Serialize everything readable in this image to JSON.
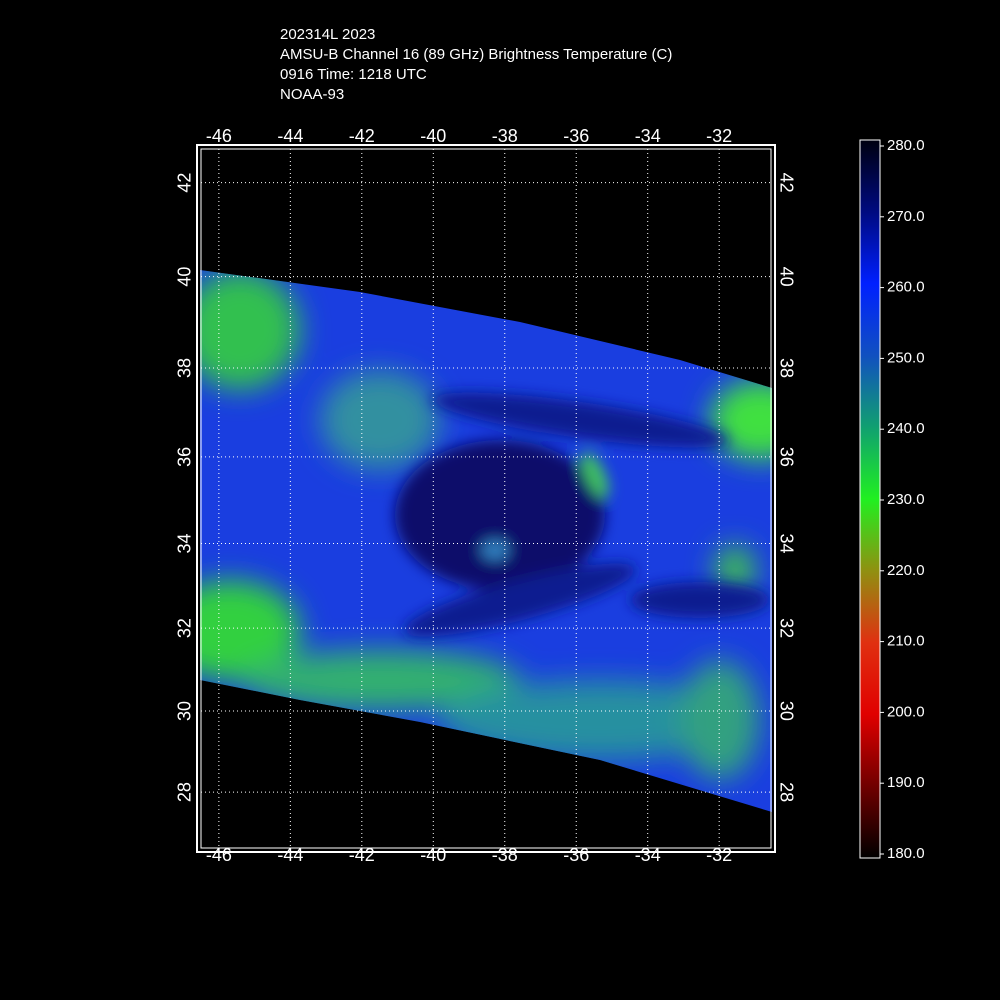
{
  "header": {
    "lines": [
      "202314L 2023",
      "AMSU-B Channel 16 (89 GHz) Brightness Temperature (C)",
      "0916 Time: 1218 UTC",
      "NOAA-93"
    ]
  },
  "map": {
    "xlim": [
      -46.5,
      -30.55
    ],
    "ylim": [
      26.6,
      42.7
    ],
    "xticks": [
      -46,
      -44,
      -42,
      -40,
      -38,
      -36,
      -34,
      -32
    ],
    "yticks": [
      28,
      30,
      32,
      34,
      36,
      38,
      40,
      42
    ],
    "grid": true
  },
  "colorbar": {
    "lim": [
      180,
      280
    ],
    "ticks": [
      {
        "value": 280,
        "label": "280.0"
      },
      {
        "value": 270,
        "label": "270.0"
      },
      {
        "value": 260,
        "label": "260.0"
      },
      {
        "value": 250,
        "label": "250.0"
      },
      {
        "value": 240,
        "label": "240.0"
      },
      {
        "value": 230,
        "label": "230.0"
      },
      {
        "value": 220,
        "label": "220.0"
      },
      {
        "value": 210,
        "label": "210.0"
      },
      {
        "value": 200,
        "label": "200.0"
      },
      {
        "value": 190,
        "label": "190.0"
      },
      {
        "value": 180,
        "label": "180.0"
      }
    ]
  }
}
